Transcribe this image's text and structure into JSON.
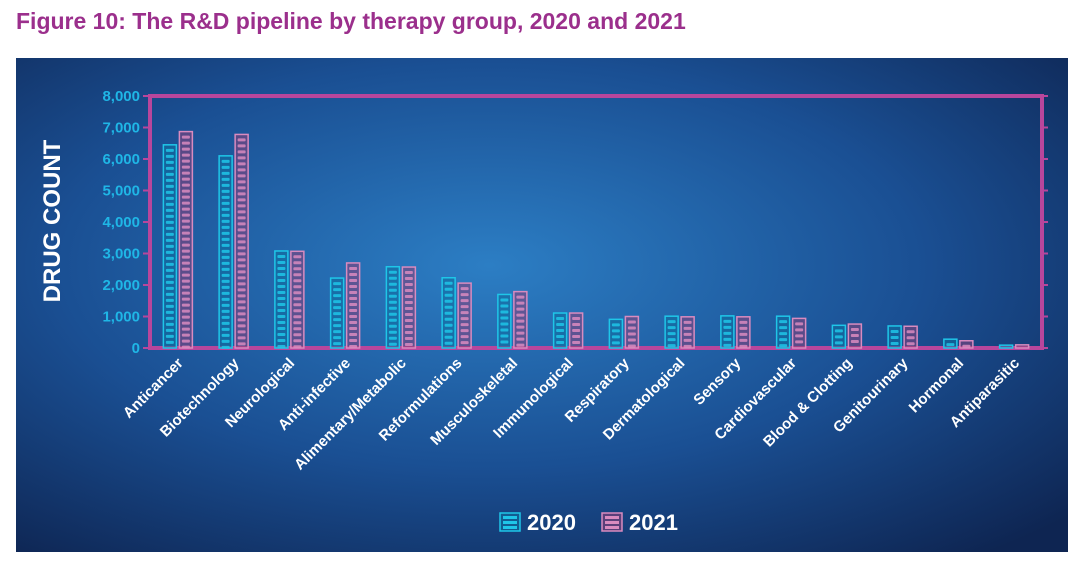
{
  "figure": {
    "title": "Figure 10: The R&D pipeline by therapy group, 2020 and 2021"
  },
  "colors": {
    "title": "#9b2f8c",
    "frame": "#b8469c",
    "series_2020": "#1fc6e8",
    "series_2021": "#d98bbf",
    "tick_labels": "#1fb6e6",
    "background_center": "#2c7ec4",
    "background_edge": "#0e2552"
  },
  "chart_data": {
    "type": "bar",
    "title": "",
    "xlabel": "",
    "ylabel": "DRUG COUNT",
    "ylim": [
      0,
      8000
    ],
    "yticks": [
      "0",
      "1,000",
      "2,000",
      "3,000",
      "4,000",
      "5,000",
      "6,000",
      "7,000",
      "8,000"
    ],
    "grid": false,
    "legend_position": "bottom-center",
    "categories": [
      "Anticancer",
      "Biotechnology",
      "Neurological",
      "Anti-infective",
      "Alimentary/Metabolic",
      "Reformulations",
      "Musculoskeletal",
      "Immunological",
      "Respiratory",
      "Dermatological",
      "Sensory",
      "Cardiovascular",
      "Blood & Clotting",
      "Genitourinary",
      "Hormonal",
      "Antiparasitic"
    ],
    "series": [
      {
        "name": "2020",
        "values": [
          6450,
          6100,
          3080,
          2220,
          2580,
          2230,
          1700,
          1110,
          910,
          1010,
          1020,
          1010,
          720,
          700,
          280,
          90
        ]
      },
      {
        "name": "2021",
        "values": [
          6870,
          6780,
          3070,
          2700,
          2570,
          2060,
          1790,
          1110,
          1000,
          990,
          990,
          940,
          760,
          690,
          230,
          100
        ]
      }
    ]
  }
}
